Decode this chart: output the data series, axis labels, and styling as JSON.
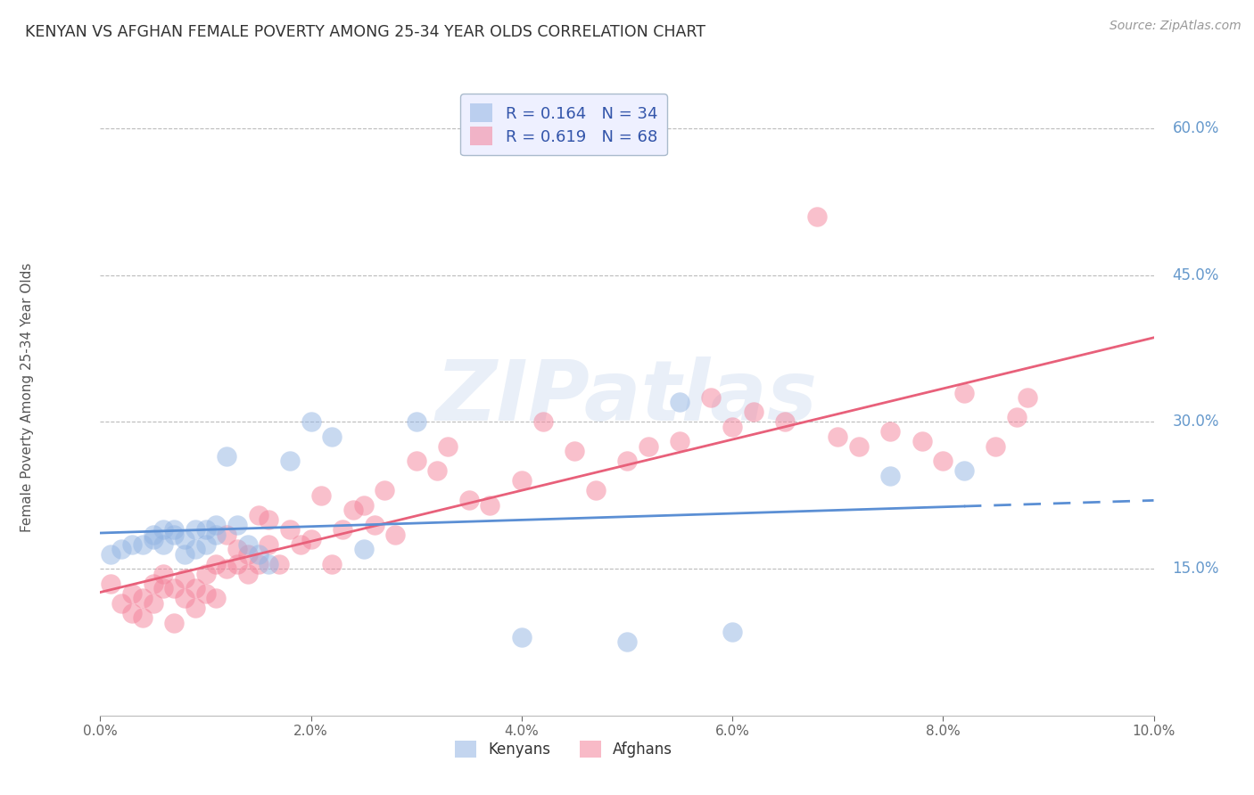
{
  "title": "KENYAN VS AFGHAN FEMALE POVERTY AMONG 25-34 YEAR OLDS CORRELATION CHART",
  "source": "Source: ZipAtlas.com",
  "ylabel": "Female Poverty Among 25-34 Year Olds",
  "xlim": [
    0.0,
    0.1
  ],
  "ylim": [
    0.0,
    0.65
  ],
  "xticks": [
    0.0,
    0.02,
    0.04,
    0.06,
    0.08,
    0.1
  ],
  "xticklabels": [
    "0.0%",
    "2.0%",
    "4.0%",
    "6.0%",
    "8.0%",
    "10.0%"
  ],
  "yticks_right": [
    0.15,
    0.3,
    0.45,
    0.6
  ],
  "yticklabels_right": [
    "15.0%",
    "30.0%",
    "45.0%",
    "60.0%"
  ],
  "watermark": "ZIPatlas",
  "kenyan_color": "#92B4E3",
  "afghan_color": "#F4829A",
  "kenyan_R": 0.164,
  "kenyan_N": 34,
  "afghan_R": 0.619,
  "afghan_N": 68,
  "background_color": "#FFFFFF",
  "grid_color": "#BBBBBB",
  "title_color": "#333333",
  "right_axis_color": "#6699CC",
  "kenyan_line_color": "#5B8FD4",
  "afghan_line_color": "#E8607A",
  "kenyan_x": [
    0.001,
    0.002,
    0.003,
    0.004,
    0.005,
    0.005,
    0.006,
    0.006,
    0.007,
    0.007,
    0.008,
    0.008,
    0.009,
    0.009,
    0.01,
    0.01,
    0.011,
    0.011,
    0.012,
    0.013,
    0.014,
    0.015,
    0.016,
    0.018,
    0.02,
    0.022,
    0.025,
    0.03,
    0.04,
    0.05,
    0.055,
    0.06,
    0.075,
    0.082
  ],
  "kenyan_y": [
    0.165,
    0.17,
    0.175,
    0.175,
    0.185,
    0.18,
    0.19,
    0.175,
    0.185,
    0.19,
    0.18,
    0.165,
    0.17,
    0.19,
    0.19,
    0.175,
    0.195,
    0.185,
    0.265,
    0.195,
    0.175,
    0.165,
    0.155,
    0.26,
    0.3,
    0.285,
    0.17,
    0.3,
    0.08,
    0.075,
    0.32,
    0.085,
    0.245,
    0.25
  ],
  "afghan_x": [
    0.001,
    0.002,
    0.003,
    0.003,
    0.004,
    0.004,
    0.005,
    0.005,
    0.006,
    0.006,
    0.007,
    0.007,
    0.008,
    0.008,
    0.009,
    0.009,
    0.01,
    0.01,
    0.011,
    0.011,
    0.012,
    0.012,
    0.013,
    0.013,
    0.014,
    0.014,
    0.015,
    0.015,
    0.016,
    0.016,
    0.017,
    0.018,
    0.019,
    0.02,
    0.021,
    0.022,
    0.023,
    0.024,
    0.025,
    0.026,
    0.027,
    0.028,
    0.03,
    0.032,
    0.033,
    0.035,
    0.037,
    0.04,
    0.042,
    0.045,
    0.047,
    0.05,
    0.052,
    0.055,
    0.058,
    0.06,
    0.062,
    0.065,
    0.068,
    0.07,
    0.072,
    0.075,
    0.078,
    0.08,
    0.082,
    0.085,
    0.087,
    0.088
  ],
  "afghan_y": [
    0.135,
    0.115,
    0.125,
    0.105,
    0.12,
    0.1,
    0.135,
    0.115,
    0.145,
    0.13,
    0.13,
    0.095,
    0.14,
    0.12,
    0.13,
    0.11,
    0.145,
    0.125,
    0.155,
    0.12,
    0.15,
    0.185,
    0.155,
    0.17,
    0.165,
    0.145,
    0.205,
    0.155,
    0.2,
    0.175,
    0.155,
    0.19,
    0.175,
    0.18,
    0.225,
    0.155,
    0.19,
    0.21,
    0.215,
    0.195,
    0.23,
    0.185,
    0.26,
    0.25,
    0.275,
    0.22,
    0.215,
    0.24,
    0.3,
    0.27,
    0.23,
    0.26,
    0.275,
    0.28,
    0.325,
    0.295,
    0.31,
    0.3,
    0.51,
    0.285,
    0.275,
    0.29,
    0.28,
    0.26,
    0.33,
    0.275,
    0.305,
    0.325
  ]
}
